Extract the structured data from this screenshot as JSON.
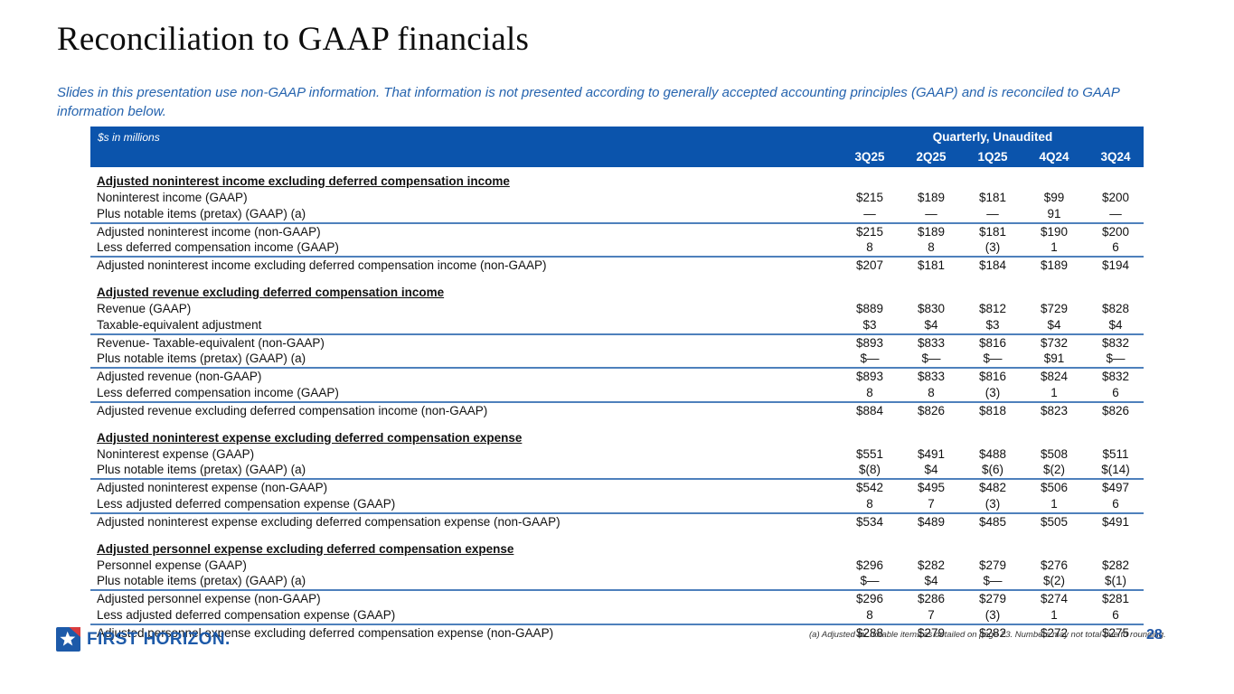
{
  "slide": {
    "title": "Reconciliation to GAAP financials",
    "subtitle": "Slides in this presentation use non-GAAP information. That information is not presented according to generally accepted accounting principles (GAAP) and is reconciled to GAAP information below.",
    "footnote": "(a) Adjusted for notable items as detailed on page 23. Numbers may not total due to rounding.",
    "page_number": "28",
    "logo_text": "FIRST HORIZON."
  },
  "colors": {
    "header_bar_blue": "#0b54ac",
    "rule_blue": "#4e80bc",
    "subtitle_blue": "#2563ae",
    "logo_blue": "#1d5aa9",
    "logo_red": "#d93b3e",
    "page_number_blue": "#2156a5"
  },
  "table": {
    "units_label": "$s in millions",
    "header_group": "Quarterly, Unaudited",
    "columns": [
      "3Q25",
      "2Q25",
      "1Q25",
      "4Q24",
      "3Q24"
    ],
    "sections": [
      {
        "title": "Adjusted noninterest income excluding deferred compensation income",
        "rows": [
          {
            "label": "Noninterest income (GAAP)",
            "values": [
              "$215",
              "$189",
              "$181",
              "$99",
              "$200"
            ],
            "rule_below": false
          },
          {
            "label": "Plus notable items (pretax) (GAAP) (a)",
            "values": [
              "—",
              "—",
              "—",
              "91",
              "—"
            ],
            "rule_below": true
          },
          {
            "label": "Adjusted noninterest income (non-GAAP)",
            "values": [
              "$215",
              "$189",
              "$181",
              "$190",
              "$200"
            ],
            "rule_below": false
          },
          {
            "label": "Less deferred compensation income (GAAP)",
            "values": [
              "8",
              "8",
              "(3)",
              "1",
              "6"
            ],
            "rule_below": true
          },
          {
            "label": "Adjusted noninterest income excluding deferred compensation income (non-GAAP)",
            "values": [
              "$207",
              "$181",
              "$184",
              "$189",
              "$194"
            ],
            "rule_below": false
          }
        ]
      },
      {
        "title": "Adjusted revenue excluding deferred compensation income",
        "rows": [
          {
            "label": "Revenue (GAAP)",
            "values": [
              "$889",
              "$830",
              "$812",
              "$729",
              "$828"
            ],
            "rule_below": false
          },
          {
            "label": "Taxable-equivalent adjustment",
            "values": [
              "$3",
              "$4",
              "$3",
              "$4",
              "$4"
            ],
            "rule_below": true
          },
          {
            "label": "Revenue- Taxable-equivalent (non-GAAP)",
            "values": [
              "$893",
              "$833",
              "$816",
              "$732",
              "$832"
            ],
            "rule_below": false
          },
          {
            "label": "Plus notable items (pretax) (GAAP) (a)",
            "values": [
              "$—",
              "$—",
              "$—",
              "$91",
              "$—"
            ],
            "rule_below": true
          },
          {
            "label": "Adjusted revenue (non-GAAP)",
            "values": [
              "$893",
              "$833",
              "$816",
              "$824",
              "$832"
            ],
            "rule_below": false
          },
          {
            "label": "Less deferred compensation income (GAAP)",
            "values": [
              "8",
              "8",
              "(3)",
              "1",
              "6"
            ],
            "rule_below": true
          },
          {
            "label": "Adjusted revenue excluding deferred compensation income (non-GAAP)",
            "values": [
              "$884",
              "$826",
              "$818",
              "$823",
              "$826"
            ],
            "rule_below": false
          }
        ]
      },
      {
        "title": "Adjusted noninterest expense excluding deferred compensation expense",
        "rows": [
          {
            "label": "Noninterest expense (GAAP)",
            "values": [
              "$551",
              "$491",
              "$488",
              "$508",
              "$511"
            ],
            "rule_below": false
          },
          {
            "label": "Plus notable items (pretax) (GAAP) (a)",
            "values": [
              "$(8)",
              "$4",
              "$(6)",
              "$(2)",
              "$(14)"
            ],
            "rule_below": true
          },
          {
            "label": "Adjusted noninterest expense (non-GAAP)",
            "values": [
              "$542",
              "$495",
              "$482",
              "$506",
              "$497"
            ],
            "rule_below": false
          },
          {
            "label": "Less adjusted deferred compensation expense (GAAP)",
            "values": [
              "8",
              "7",
              "(3)",
              "1",
              "6"
            ],
            "rule_below": true
          },
          {
            "label": "Adjusted noninterest expense excluding deferred compensation expense (non-GAAP)",
            "values": [
              "$534",
              "$489",
              "$485",
              "$505",
              "$491"
            ],
            "rule_below": false
          }
        ]
      },
      {
        "title": "Adjusted personnel expense excluding deferred compensation expense",
        "rows": [
          {
            "label": "Personnel expense (GAAP)",
            "values": [
              "$296",
              "$282",
              "$279",
              "$276",
              "$282"
            ],
            "rule_below": false
          },
          {
            "label": "Plus notable items (pretax) (GAAP) (a)",
            "values": [
              "$—",
              "$4",
              "$—",
              "$(2)",
              "$(1)"
            ],
            "rule_below": true
          },
          {
            "label": "Adjusted personnel expense (non-GAAP)",
            "values": [
              "$296",
              "$286",
              "$279",
              "$274",
              "$281"
            ],
            "rule_below": false
          },
          {
            "label": "Less adjusted deferred compensation expense (GAAP)",
            "values": [
              "8",
              "7",
              "(3)",
              "1",
              "6"
            ],
            "rule_below": true
          },
          {
            "label": "Adjusted personnel expense excluding deferred compensation expense (non-GAAP)",
            "values": [
              "$288",
              "$279",
              "$282",
              "$272",
              "$275"
            ],
            "rule_below": false
          }
        ]
      }
    ]
  }
}
